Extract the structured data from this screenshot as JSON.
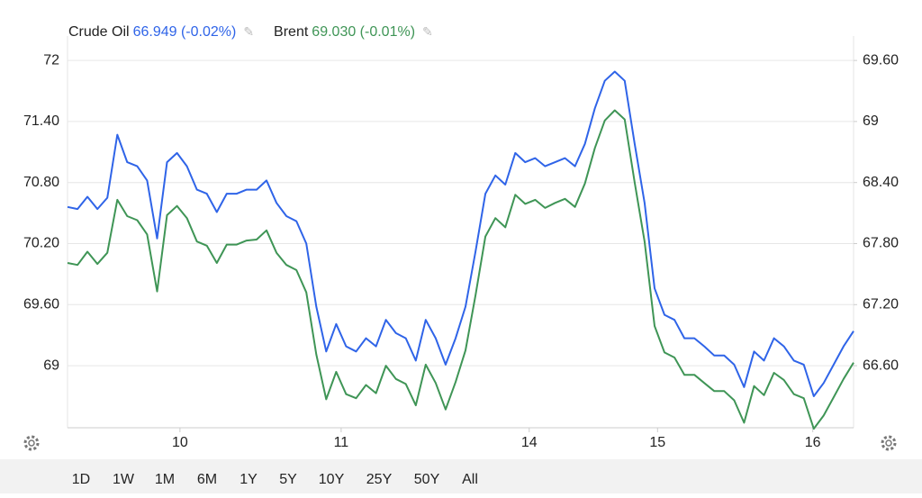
{
  "chart_data": {
    "type": "line",
    "legend": [
      {
        "name": "Crude Oil",
        "value": "66.949 (-0.02%)"
      },
      {
        "name": "Brent",
        "value": "69.030 (-0.01%)"
      }
    ],
    "xlim": [
      0,
      79
    ],
    "xticks": [
      {
        "value": 11.3,
        "label": "10"
      },
      {
        "value": 27.5,
        "label": "11"
      },
      {
        "value": 46.4,
        "label": "14"
      },
      {
        "value": 59.3,
        "label": "15"
      },
      {
        "value": 74.9,
        "label": "16"
      }
    ],
    "ylim": [
      68.39,
      72.24
    ],
    "yticks": [
      69,
      {
        "value": 69.6,
        "label": "69.60"
      },
      {
        "value": 70.2,
        "label": "70.20"
      },
      {
        "value": 70.8,
        "label": "70.80"
      },
      {
        "value": 71.4,
        "label": "71.40"
      },
      72
    ],
    "y2lim": [
      65.99,
      69.84
    ],
    "y2ticks": [
      {
        "value": 66.6,
        "label": "66.60"
      },
      {
        "value": 67.2,
        "label": "67.20"
      },
      {
        "value": 67.8,
        "label": "67.80"
      },
      {
        "value": 68.4,
        "label": "68.40"
      },
      69,
      {
        "value": 69.6,
        "label": "69.60"
      }
    ],
    "grid": true,
    "series": [
      {
        "name": "Crude Oil",
        "color": "#2f64e8",
        "axis": "y2",
        "values": [
          68.16,
          68.14,
          68.26,
          68.14,
          68.25,
          68.87,
          68.6,
          68.56,
          68.42,
          67.85,
          68.6,
          68.69,
          68.56,
          68.33,
          68.29,
          68.11,
          68.29,
          68.29,
          68.33,
          68.33,
          68.42,
          68.2,
          68.07,
          68.02,
          67.8,
          67.18,
          66.74,
          67.01,
          66.79,
          66.74,
          66.87,
          66.79,
          67.05,
          66.92,
          66.87,
          66.65,
          67.05,
          66.87,
          66.61,
          66.87,
          67.18,
          67.72,
          68.29,
          68.47,
          68.38,
          68.69,
          68.6,
          68.64,
          68.56,
          68.6,
          68.64,
          68.56,
          68.78,
          69.13,
          69.4,
          69.49,
          69.4,
          68.78,
          68.2,
          67.36,
          67.1,
          67.05,
          66.87,
          66.87,
          66.79,
          66.7,
          66.7,
          66.61,
          66.39,
          66.74,
          66.65,
          66.87,
          66.79,
          66.65,
          66.61,
          66.3,
          66.43,
          66.61,
          66.79,
          66.94
        ]
      },
      {
        "name": "Brent",
        "color": "#3f9556",
        "values": [
          70.01,
          69.99,
          70.12,
          70.0,
          70.11,
          70.63,
          70.47,
          70.43,
          70.29,
          69.73,
          70.48,
          70.57,
          70.45,
          70.22,
          70.18,
          70.01,
          70.19,
          70.19,
          70.23,
          70.24,
          70.33,
          70.11,
          69.99,
          69.94,
          69.72,
          69.11,
          68.67,
          68.94,
          68.72,
          68.68,
          68.81,
          68.73,
          69.0,
          68.87,
          68.82,
          68.61,
          69.01,
          68.83,
          68.57,
          68.84,
          69.15,
          69.69,
          70.27,
          70.45,
          70.36,
          70.68,
          70.59,
          70.63,
          70.55,
          70.6,
          70.64,
          70.56,
          70.79,
          71.14,
          71.41,
          71.51,
          71.42,
          70.8,
          70.22,
          69.39,
          69.13,
          69.08,
          68.91,
          68.91,
          68.83,
          68.75,
          68.75,
          68.66,
          68.44,
          68.8,
          68.71,
          68.93,
          68.86,
          68.72,
          68.68,
          68.38,
          68.51,
          68.69,
          68.87,
          69.03
        ]
      }
    ],
    "ranges": [
      "1D",
      "1W",
      "1M",
      "6M",
      "1Y",
      "5Y",
      "10Y",
      "25Y",
      "50Y",
      "All"
    ],
    "active_range": 1
  }
}
